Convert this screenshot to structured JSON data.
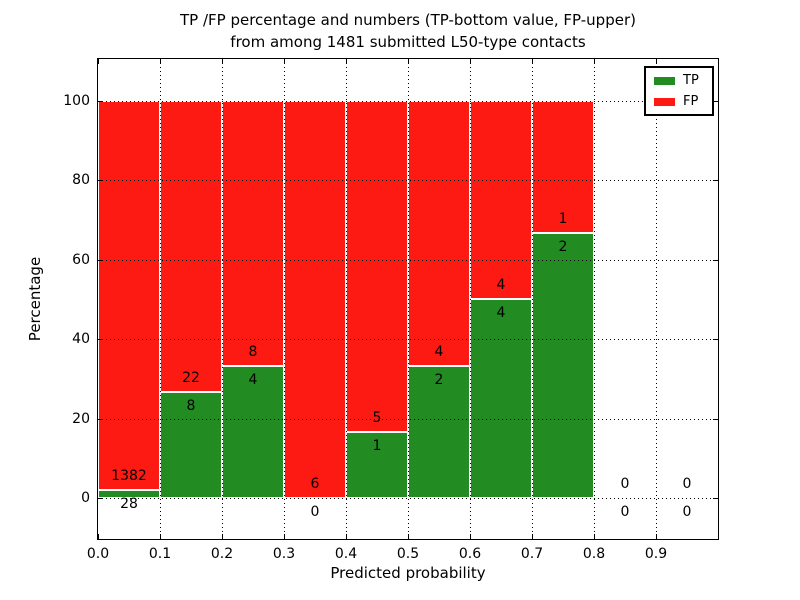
{
  "title": {
    "line1": "TP /FP percentage and numbers (TP-bottom value, FP-upper)",
    "line2": "from among 1481 submitted L50-type contacts"
  },
  "chart_data": {
    "type": "bar",
    "stacked": true,
    "title": "TP /FP percentage and numbers (TP-bottom value, FP-upper)\nfrom among 1481 submitted L50-type contacts",
    "xlabel": "Predicted probability",
    "ylabel": "Percentage",
    "xlim": [
      0.0,
      1.0
    ],
    "ylim": [
      -10.3,
      110.5
    ],
    "x_tick_values": [
      0.0,
      0.1,
      0.2,
      0.3,
      0.4,
      0.5,
      0.6,
      0.7,
      0.8,
      0.9
    ],
    "x_tick_labels": [
      "0.0",
      "0.1",
      "0.2",
      "0.3",
      "0.4",
      "0.5",
      "0.6",
      "0.7",
      "0.8",
      "0.9"
    ],
    "y_tick_values": [
      0,
      20,
      40,
      60,
      80,
      100
    ],
    "y_tick_labels": [
      "0",
      "20",
      "40",
      "60",
      "80",
      "100"
    ],
    "grid": "dotted",
    "colors": {
      "tp": "#228b22",
      "fp": "#fc1a13"
    },
    "legend": {
      "position": "upper right",
      "entries": [
        {
          "label": "TP",
          "color": "#228b22"
        },
        {
          "label": "FP",
          "color": "#fc1a13"
        }
      ]
    },
    "bins": [
      {
        "range": [
          0.0,
          0.1
        ],
        "tp_count": 28,
        "fp_count": 1382,
        "tp_pct": 1.99,
        "fp_pct": 98.01
      },
      {
        "range": [
          0.1,
          0.2
        ],
        "tp_count": 8,
        "fp_count": 22,
        "tp_pct": 26.67,
        "fp_pct": 73.33
      },
      {
        "range": [
          0.2,
          0.3
        ],
        "tp_count": 4,
        "fp_count": 8,
        "tp_pct": 33.33,
        "fp_pct": 66.67
      },
      {
        "range": [
          0.3,
          0.4
        ],
        "tp_count": 0,
        "fp_count": 6,
        "tp_pct": 0.0,
        "fp_pct": 100.0
      },
      {
        "range": [
          0.4,
          0.5
        ],
        "tp_count": 1,
        "fp_count": 5,
        "tp_pct": 16.67,
        "fp_pct": 83.33
      },
      {
        "range": [
          0.5,
          0.6
        ],
        "tp_count": 2,
        "fp_count": 4,
        "tp_pct": 33.33,
        "fp_pct": 66.67
      },
      {
        "range": [
          0.6,
          0.7
        ],
        "tp_count": 4,
        "fp_count": 4,
        "tp_pct": 50.0,
        "fp_pct": 50.0
      },
      {
        "range": [
          0.7,
          0.8
        ],
        "tp_count": 2,
        "fp_count": 1,
        "tp_pct": 66.67,
        "fp_pct": 33.33
      },
      {
        "range": [
          0.8,
          0.9
        ],
        "tp_count": 0,
        "fp_count": 0,
        "tp_pct": 0.0,
        "fp_pct": 0.0
      },
      {
        "range": [
          0.9,
          1.0
        ],
        "tp_count": 0,
        "fp_count": 0,
        "tp_pct": 0.0,
        "fp_pct": 0.0
      }
    ]
  }
}
